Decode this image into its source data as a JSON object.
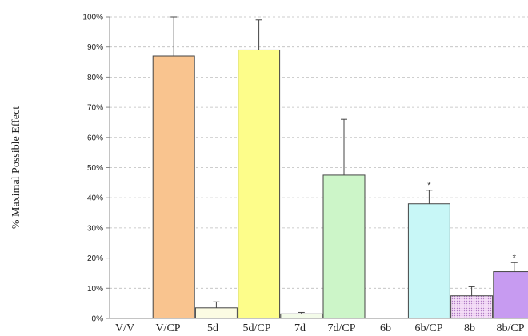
{
  "chart_data": {
    "type": "bar",
    "title": "",
    "xlabel": "",
    "ylabel": "% Maximal Possible Effect",
    "ylim": [
      0,
      100
    ],
    "yticks": [
      "0%",
      "10%",
      "20%",
      "30%",
      "40%",
      "50%",
      "60%",
      "70%",
      "80%",
      "90%",
      "100%"
    ],
    "grid": true,
    "categories": [
      "V/V",
      "V/CP",
      "5d",
      "5d/CP",
      "7d",
      "7d/CP",
      "6b",
      "6b/CP",
      "8b",
      "8b/CP"
    ],
    "values": [
      0,
      87,
      3.5,
      89,
      1.5,
      47.5,
      0,
      38,
      7.5,
      15.5
    ],
    "errors": [
      0,
      13,
      2,
      10,
      0.5,
      18.5,
      0,
      4.5,
      3,
      3
    ],
    "significance": [
      "",
      "",
      "",
      "",
      "",
      "",
      "",
      "*",
      "",
      "*"
    ],
    "colors": [
      "#ffffff",
      "#f9c48f",
      "#fbfbe3",
      "#fdfd8a",
      "#f3fbe9",
      "#ccf5c8",
      "#ffffff",
      "#c8f7f7",
      "#f2d8f7",
      "#c79bf1"
    ],
    "patterns": [
      "",
      "",
      "",
      "",
      "",
      "",
      "",
      "",
      "dotted",
      ""
    ]
  }
}
